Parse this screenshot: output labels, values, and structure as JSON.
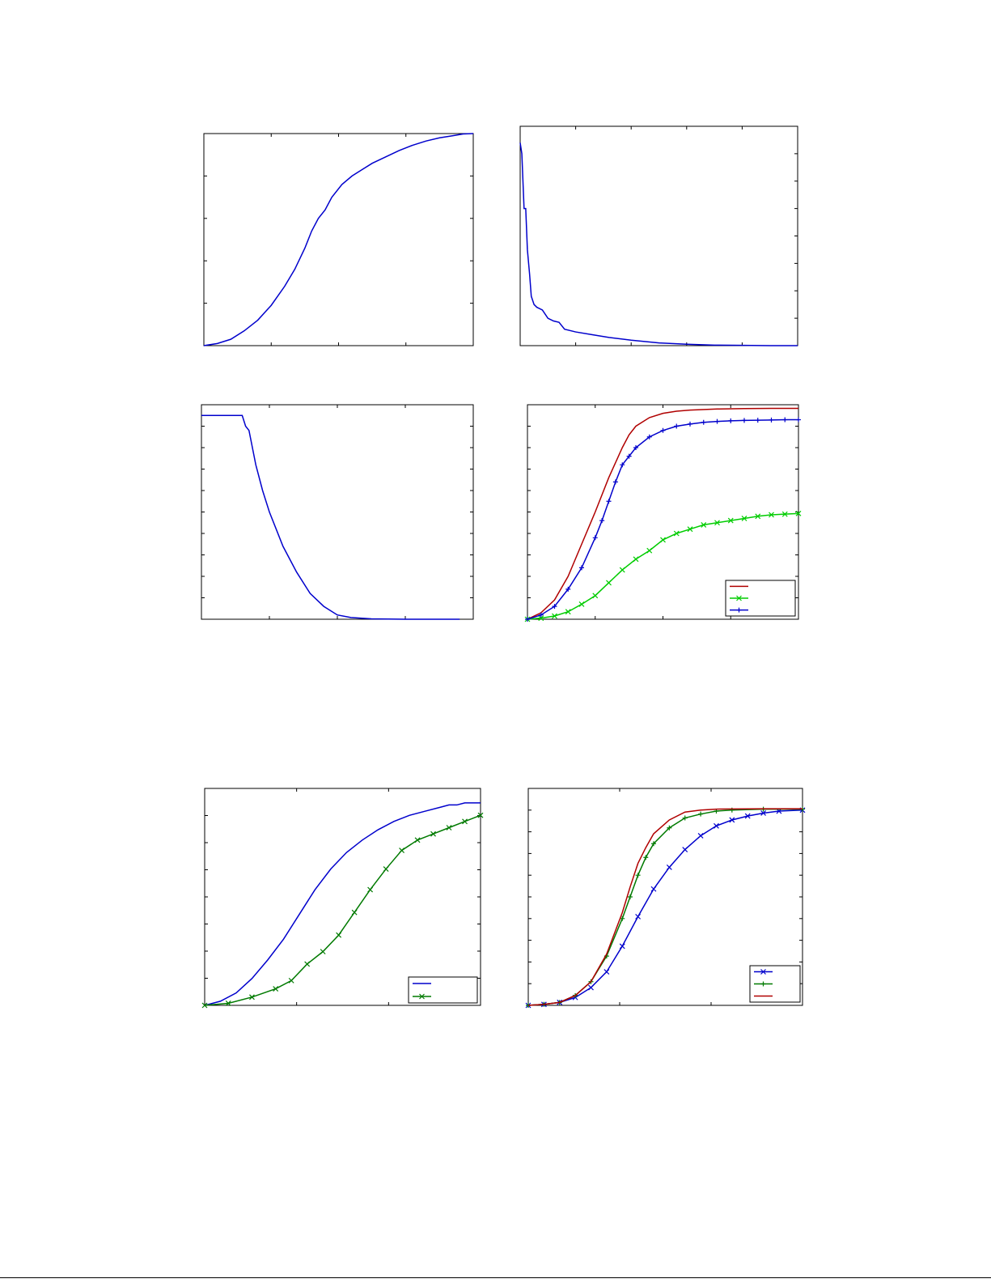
{
  "colors": {
    "blue": "#0000cc",
    "green": "#00cc00",
    "red": "#b00000",
    "dark_green": "#007a00",
    "axes": "#000000",
    "background": "#ffffff"
  },
  "chart_data": [
    {
      "type": "line",
      "title": "",
      "xlabel": "",
      "ylabel": "",
      "xlim": [
        0,
        4
      ],
      "ylim": [
        0,
        1
      ],
      "grid": false,
      "series": [
        {
          "color": "blue",
          "marker": "none",
          "x": [
            0,
            0.2,
            0.4,
            0.6,
            0.8,
            1.0,
            1.2,
            1.35,
            1.5,
            1.6,
            1.7,
            1.8,
            1.9,
            2.05,
            2.2,
            2.35,
            2.5,
            2.7,
            2.9,
            3.1,
            3.3,
            3.5,
            3.7,
            3.85,
            4.0
          ],
          "y": [
            0,
            0.01,
            0.03,
            0.07,
            0.12,
            0.19,
            0.28,
            0.36,
            0.46,
            0.54,
            0.6,
            0.64,
            0.7,
            0.76,
            0.8,
            0.83,
            0.86,
            0.89,
            0.92,
            0.945,
            0.965,
            0.98,
            0.99,
            0.998,
            1.0
          ]
        }
      ]
    },
    {
      "type": "line",
      "title": "",
      "xlabel": "",
      "ylabel": "",
      "xlim": [
        0,
        5
      ],
      "ylim": [
        0,
        8
      ],
      "grid": false,
      "series": [
        {
          "color": "blue",
          "marker": "none",
          "x": [
            0,
            0.03,
            0.07,
            0.1,
            0.13,
            0.17,
            0.2,
            0.25,
            0.3,
            0.4,
            0.5,
            0.6,
            0.7,
            0.8,
            1.0,
            1.3,
            1.6,
            2.0,
            2.5,
            3.0,
            3.5,
            4.0,
            4.5,
            5.0
          ],
          "y": [
            7.4,
            7.0,
            5.0,
            5.0,
            3.5,
            2.6,
            1.8,
            1.5,
            1.4,
            1.3,
            1.0,
            0.9,
            0.85,
            0.6,
            0.5,
            0.4,
            0.3,
            0.2,
            0.1,
            0.05,
            0.02,
            0.01,
            0.0,
            0.0
          ]
        }
      ]
    },
    {
      "type": "line",
      "title": "",
      "xlabel": "",
      "ylabel": "",
      "xlim": [
        0,
        4
      ],
      "ylim": [
        0,
        1
      ],
      "grid": false,
      "series": [
        {
          "color": "blue",
          "marker": "none",
          "x": [
            0,
            0.3,
            0.6,
            0.65,
            0.7,
            0.75,
            0.8,
            0.9,
            1.0,
            1.1,
            1.2,
            1.4,
            1.6,
            1.8,
            2.0,
            2.2,
            2.5,
            3.0,
            3.5,
            3.8
          ],
          "y": [
            0.95,
            0.95,
            0.95,
            0.9,
            0.88,
            0.8,
            0.72,
            0.6,
            0.5,
            0.42,
            0.34,
            0.22,
            0.12,
            0.06,
            0.02,
            0.008,
            0.002,
            0.0,
            0.0,
            0.0
          ]
        }
      ]
    },
    {
      "type": "line",
      "title": "",
      "xlabel": "",
      "ylabel": "",
      "xlim": [
        0,
        4
      ],
      "ylim": [
        0,
        1
      ],
      "grid": false,
      "legend": "bottom-right",
      "series": [
        {
          "color": "red",
          "marker": "none",
          "x": [
            0,
            0.2,
            0.4,
            0.6,
            0.8,
            1.0,
            1.2,
            1.4,
            1.5,
            1.6,
            1.8,
            2.0,
            2.2,
            2.4,
            2.8,
            3.2,
            3.6,
            4.0
          ],
          "y": [
            0,
            0.03,
            0.09,
            0.2,
            0.35,
            0.5,
            0.66,
            0.8,
            0.86,
            0.9,
            0.94,
            0.96,
            0.97,
            0.975,
            0.98,
            0.982,
            0.983,
            0.983
          ]
        },
        {
          "color": "green",
          "marker": "x",
          "x": [
            0,
            0.2,
            0.4,
            0.6,
            0.8,
            1.0,
            1.2,
            1.4,
            1.6,
            1.8,
            2.0,
            2.2,
            2.4,
            2.6,
            2.8,
            3.0,
            3.2,
            3.4,
            3.6,
            3.8,
            4.0
          ],
          "y": [
            0,
            0.005,
            0.015,
            0.035,
            0.07,
            0.11,
            0.17,
            0.23,
            0.28,
            0.32,
            0.37,
            0.4,
            0.42,
            0.44,
            0.45,
            0.46,
            0.47,
            0.48,
            0.487,
            0.49,
            0.493
          ]
        },
        {
          "color": "blue",
          "marker": "plus",
          "x": [
            0,
            0.2,
            0.4,
            0.6,
            0.8,
            1.0,
            1.1,
            1.2,
            1.3,
            1.4,
            1.5,
            1.6,
            1.8,
            2.0,
            2.2,
            2.4,
            2.6,
            2.8,
            3.0,
            3.2,
            3.4,
            3.6,
            3.8,
            4.0
          ],
          "y": [
            0,
            0.02,
            0.06,
            0.14,
            0.24,
            0.38,
            0.46,
            0.55,
            0.64,
            0.72,
            0.76,
            0.8,
            0.85,
            0.88,
            0.9,
            0.91,
            0.918,
            0.922,
            0.925,
            0.927,
            0.928,
            0.929,
            0.93,
            0.93
          ]
        }
      ]
    },
    {
      "type": "line",
      "title": "",
      "xlabel": "",
      "ylabel": "",
      "xlim": [
        0,
        3.5
      ],
      "ylim": [
        0,
        1.05
      ],
      "grid": false,
      "legend": "bottom-right",
      "series": [
        {
          "color": "blue",
          "marker": "none",
          "x": [
            0,
            0.2,
            0.4,
            0.6,
            0.8,
            1.0,
            1.2,
            1.4,
            1.6,
            1.8,
            2.0,
            2.2,
            2.4,
            2.6,
            2.8,
            3.0,
            3.1,
            3.2,
            3.3,
            3.5
          ],
          "y": [
            0,
            0.02,
            0.06,
            0.13,
            0.22,
            0.32,
            0.44,
            0.56,
            0.66,
            0.74,
            0.8,
            0.85,
            0.89,
            0.92,
            0.94,
            0.96,
            0.97,
            0.97,
            0.98,
            0.98
          ]
        },
        {
          "color": "dark_green",
          "marker": "x",
          "x": [
            0,
            0.3,
            0.6,
            0.9,
            1.1,
            1.3,
            1.5,
            1.7,
            1.9,
            2.1,
            2.3,
            2.5,
            2.7,
            2.9,
            3.1,
            3.3,
            3.5
          ],
          "y": [
            0,
            0.01,
            0.04,
            0.08,
            0.12,
            0.2,
            0.26,
            0.34,
            0.45,
            0.56,
            0.66,
            0.75,
            0.8,
            0.83,
            0.86,
            0.89,
            0.92
          ]
        }
      ]
    },
    {
      "type": "line",
      "title": "",
      "xlabel": "",
      "ylabel": "",
      "xlim": [
        0,
        3.5
      ],
      "ylim": [
        0,
        1.1
      ],
      "grid": false,
      "legend": "bottom-right",
      "series": [
        {
          "color": "blue",
          "marker": "x",
          "x": [
            0,
            0.2,
            0.4,
            0.6,
            0.8,
            1.0,
            1.2,
            1.4,
            1.6,
            1.8,
            2.0,
            2.2,
            2.4,
            2.6,
            2.8,
            3.0,
            3.2,
            3.5
          ],
          "y": [
            0,
            0.005,
            0.015,
            0.04,
            0.09,
            0.17,
            0.3,
            0.45,
            0.59,
            0.7,
            0.79,
            0.86,
            0.91,
            0.94,
            0.96,
            0.975,
            0.985,
            0.99
          ]
        },
        {
          "color": "dark_green",
          "marker": "plus",
          "x": [
            0,
            0.2,
            0.4,
            0.6,
            0.8,
            1.0,
            1.2,
            1.3,
            1.4,
            1.5,
            1.6,
            1.8,
            2.0,
            2.2,
            2.4,
            2.6,
            3.0,
            3.5
          ],
          "y": [
            0,
            0.005,
            0.015,
            0.05,
            0.12,
            0.25,
            0.44,
            0.55,
            0.66,
            0.75,
            0.82,
            0.9,
            0.95,
            0.97,
            0.985,
            0.99,
            0.995,
            0.995
          ]
        },
        {
          "color": "red",
          "marker": "none",
          "x": [
            0,
            0.2,
            0.4,
            0.6,
            0.8,
            1.0,
            1.2,
            1.3,
            1.4,
            1.5,
            1.6,
            1.8,
            2.0,
            2.2,
            2.4,
            3.0,
            3.5
          ],
          "y": [
            0,
            0.005,
            0.015,
            0.05,
            0.12,
            0.26,
            0.47,
            0.6,
            0.72,
            0.8,
            0.87,
            0.94,
            0.98,
            0.99,
            0.995,
            0.997,
            0.997
          ]
        }
      ]
    }
  ]
}
